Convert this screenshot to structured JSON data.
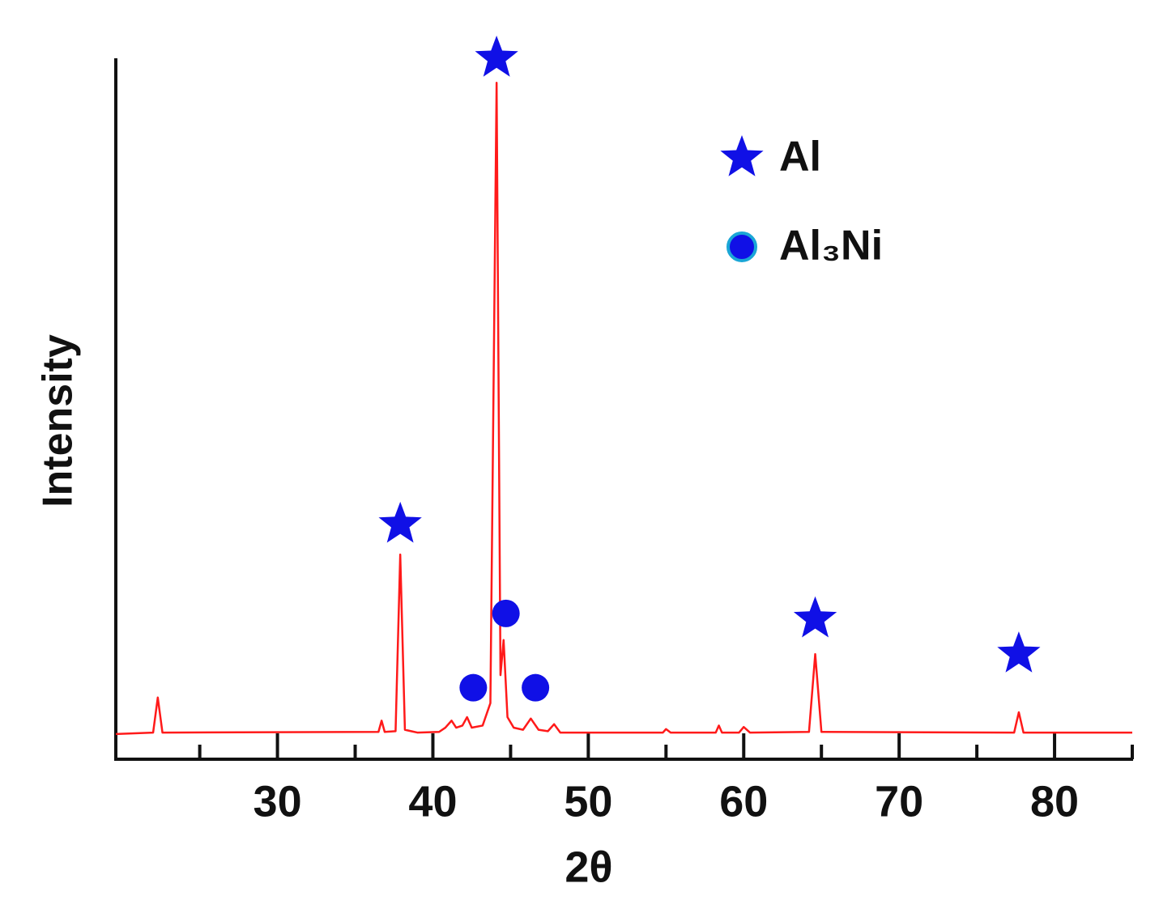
{
  "chart_data": {
    "type": "line",
    "x_label": "2θ",
    "y_label": "Intensity",
    "xlim": [
      19.6,
      85
    ],
    "ylim": [
      0,
      100
    ],
    "xticks": [
      30,
      40,
      50,
      60,
      70,
      80
    ],
    "xminor_ticks": [
      25,
      35,
      45,
      55,
      65,
      75,
      85
    ],
    "x": [
      19.6,
      22.0,
      22.3,
      22.6,
      36.5,
      36.7,
      36.9,
      37.6,
      37.9,
      38.2,
      39.0,
      40.4,
      40.8,
      41.2,
      41.5,
      41.9,
      42.2,
      42.5,
      43.2,
      43.7,
      44.1,
      44.35,
      44.55,
      44.8,
      45.2,
      45.8,
      46.3,
      46.8,
      47.4,
      47.8,
      48.2,
      54.8,
      55.0,
      55.3,
      58.2,
      58.4,
      58.6,
      59.7,
      60.0,
      60.4,
      64.2,
      64.6,
      65.0,
      77.4,
      77.7,
      78.0,
      85.0
    ],
    "series": [
      {
        "color": "#ff1a1a",
        "values": [
          3.6,
          3.8,
          8.8,
          3.8,
          3.9,
          5.5,
          3.9,
          4.0,
          29.2,
          4.2,
          3.8,
          3.9,
          4.5,
          5.5,
          4.5,
          4.8,
          6.0,
          4.5,
          4.8,
          8.0,
          96.5,
          12.0,
          17.0,
          6.0,
          4.5,
          4.2,
          5.8,
          4.2,
          4.0,
          5.0,
          3.8,
          3.8,
          4.3,
          3.8,
          3.8,
          4.8,
          3.8,
          3.8,
          4.6,
          3.8,
          3.9,
          15.0,
          3.9,
          3.8,
          6.7,
          3.8,
          3.8
        ]
      }
    ],
    "markers": [
      {
        "name": "Al",
        "symbol": "star",
        "color": "#1010e6",
        "x": [
          37.9,
          44.1,
          64.6,
          77.7
        ],
        "values": [
          33.5,
          100,
          20.0,
          15.0
        ]
      },
      {
        "name": "Al₃Ni",
        "symbol": "circle",
        "color": "#1010e6",
        "x": [
          42.6,
          44.7,
          46.6
        ],
        "values": [
          10.2,
          20.8,
          10.2
        ]
      }
    ]
  }
}
